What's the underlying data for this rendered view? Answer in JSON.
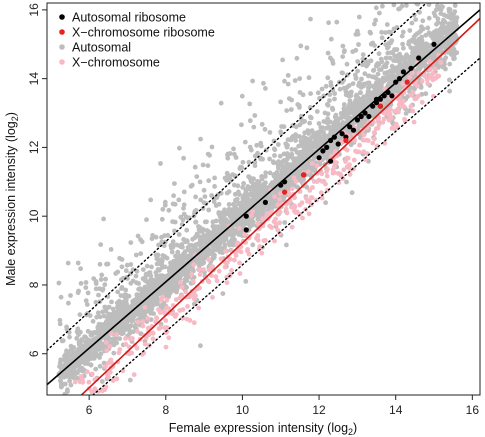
{
  "chart_data": {
    "type": "scatter",
    "xlabel": "Female expression intensity (log",
    "xlabel_sub": "2",
    "xlabel_end": ")",
    "ylabel": "Male expression intensity (log",
    "ylabel_sub": "2",
    "ylabel_end": ")",
    "xlim": [
      4.9,
      16.2
    ],
    "ylim": [
      4.8,
      16.2
    ],
    "x_ticks": [
      6,
      8,
      10,
      12,
      14,
      16
    ],
    "y_ticks": [
      6,
      8,
      10,
      12,
      14,
      16
    ],
    "grid": false,
    "legend_position": "top-left",
    "legend": [
      {
        "label": "Autosomal ribosome",
        "color": "#000000"
      },
      {
        "label": "X−chromosome ribosome",
        "color": "#e8231f"
      },
      {
        "label": "Autosomal",
        "color": "#bdbdbd"
      },
      {
        "label": "X−chromosome",
        "color": "#f7b9c4"
      }
    ],
    "lines": [
      {
        "name": "autosomal-fit",
        "style": "solid",
        "color": "#000000",
        "from": [
          4.9,
          5.1
        ],
        "to": [
          16.2,
          16.0
        ]
      },
      {
        "name": "x-chromosome-fit",
        "style": "solid",
        "color": "#d11a15",
        "from": [
          5.8,
          4.8
        ],
        "to": [
          16.2,
          15.75
        ]
      },
      {
        "name": "upper-bound",
        "style": "dotted",
        "color": "#000000",
        "from": [
          4.9,
          6.1
        ],
        "to": [
          14.8,
          16.2
        ]
      },
      {
        "name": "lower-bound",
        "style": "dotted",
        "color": "#000000",
        "from": [
          6.1,
          4.8
        ],
        "to": [
          16.2,
          14.6
        ]
      }
    ],
    "series": [
      {
        "name": "Autosomal ribosome",
        "color": "#000000",
        "points": [
          [
            10.1,
            9.6
          ],
          [
            10.1,
            10.0
          ],
          [
            11.0,
            10.9
          ],
          [
            11.1,
            11.0
          ],
          [
            11.6,
            11.2
          ],
          [
            12.0,
            11.7
          ],
          [
            12.1,
            11.9
          ],
          [
            12.2,
            12.0
          ],
          [
            12.3,
            12.2
          ],
          [
            12.3,
            11.6
          ],
          [
            12.4,
            12.3
          ],
          [
            12.5,
            12.1
          ],
          [
            12.6,
            12.4
          ],
          [
            12.7,
            12.3
          ],
          [
            12.8,
            12.6
          ],
          [
            12.9,
            12.5
          ],
          [
            13.0,
            12.8
          ],
          [
            13.1,
            12.9
          ],
          [
            13.2,
            13.0
          ],
          [
            13.3,
            12.9
          ],
          [
            13.4,
            13.2
          ],
          [
            13.5,
            13.3
          ],
          [
            13.6,
            13.4
          ],
          [
            13.7,
            13.5
          ],
          [
            13.8,
            13.6
          ],
          [
            13.9,
            13.5
          ],
          [
            14.0,
            13.9
          ],
          [
            14.1,
            14.0
          ],
          [
            14.2,
            14.2
          ],
          [
            14.4,
            14.3
          ],
          [
            14.6,
            14.6
          ],
          [
            15.0,
            15.0
          ],
          [
            10.6,
            10.4
          ],
          [
            13.5,
            13.4
          ],
          [
            13.6,
            13.2
          ]
        ]
      },
      {
        "name": "X−chromosome ribosome",
        "color": "#e8231f",
        "points": [
          [
            11.1,
            10.7
          ],
          [
            11.6,
            11.2
          ],
          [
            12.7,
            12.2
          ],
          [
            13.6,
            13.2
          ],
          [
            14.3,
            13.9
          ]
        ]
      }
    ]
  }
}
